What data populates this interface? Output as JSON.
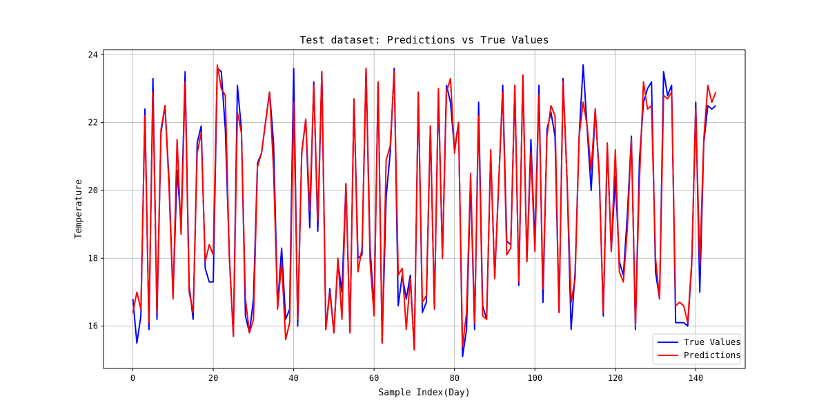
{
  "chart_data": {
    "type": "line",
    "title": "Test dataset: Predictions vs True Values",
    "xlabel": "Sample Index(Day)",
    "ylabel": "Temperature",
    "xlim": [
      -7.3,
      152.3
    ],
    "ylim": [
      14.75,
      24.15
    ],
    "xticks": [
      0,
      20,
      40,
      60,
      80,
      100,
      120,
      140
    ],
    "yticks": [
      16,
      18,
      20,
      22,
      24
    ],
    "grid": true,
    "legend_position": "lower-right",
    "series": [
      {
        "name": "True Values",
        "color": "#0000ff",
        "values": [
          16.8,
          15.5,
          16.3,
          22.4,
          15.9,
          23.3,
          16.2,
          21.7,
          22.5,
          20.3,
          16.9,
          20.6,
          19.0,
          23.5,
          17.2,
          16.2,
          21.4,
          21.9,
          17.7,
          17.3,
          17.3,
          23.6,
          23.5,
          21.8,
          18.1,
          15.7,
          23.1,
          21.8,
          16.3,
          15.8,
          16.8,
          20.8,
          21.1,
          22.0,
          22.9,
          21.4,
          16.6,
          18.3,
          16.2,
          16.5,
          23.6,
          16.0,
          21.1,
          22.1,
          18.9,
          23.2,
          18.8,
          23.5,
          15.9,
          17.1,
          15.8,
          17.9,
          17.0,
          20.2,
          15.8,
          22.7,
          18.0,
          18.1,
          23.6,
          18.3,
          16.5,
          23.2,
          15.5,
          19.8,
          21.1,
          23.6,
          16.6,
          17.5,
          16.8,
          17.5,
          15.3,
          22.9,
          16.4,
          16.7,
          21.9,
          16.5,
          22.9,
          18.0,
          23.1,
          22.6,
          21.2,
          22.0,
          15.1,
          15.9,
          20.3,
          15.9,
          22.6,
          16.6,
          16.2,
          21.1,
          17.4,
          20.2,
          23.1,
          18.5,
          18.4,
          23.1,
          17.2,
          23.4,
          17.9,
          21.5,
          18.4,
          23.1,
          16.7,
          21.8,
          22.3,
          21.6,
          16.4,
          23.3,
          20.3,
          15.9,
          17.6,
          21.6,
          23.7,
          21.8,
          20.0,
          22.4,
          20.5,
          16.3,
          21.3,
          18.2,
          20.4,
          17.9,
          17.5,
          19.3,
          21.6,
          15.9,
          20.9,
          22.6,
          23.0,
          23.2,
          17.6,
          16.8,
          23.5,
          22.8,
          23.1,
          16.1,
          16.1,
          16.1,
          16.0,
          17.8,
          22.6,
          17.0,
          21.4,
          22.5,
          22.4,
          22.5
        ]
      },
      {
        "name": "Predictions",
        "color": "#ff0000",
        "values": [
          16.4,
          17.0,
          16.5,
          22.2,
          16.1,
          22.9,
          16.4,
          21.8,
          22.5,
          20.1,
          16.8,
          21.5,
          18.7,
          23.2,
          17.0,
          16.4,
          21.1,
          21.7,
          17.9,
          18.4,
          18.1,
          23.7,
          23.0,
          22.8,
          18.0,
          15.7,
          22.3,
          21.7,
          16.8,
          15.8,
          16.2,
          20.7,
          21.1,
          22.0,
          22.9,
          20.6,
          16.5,
          17.9,
          15.6,
          16.1,
          22.6,
          16.2,
          21.1,
          22.1,
          19.4,
          23.1,
          19.1,
          23.5,
          15.9,
          17.0,
          15.8,
          18.0,
          16.2,
          20.2,
          15.8,
          22.7,
          17.6,
          18.3,
          23.6,
          17.9,
          16.3,
          23.2,
          15.5,
          20.9,
          21.3,
          23.5,
          17.5,
          17.7,
          15.9,
          17.4,
          15.3,
          22.9,
          16.7,
          16.9,
          21.9,
          16.5,
          23.0,
          18.0,
          22.9,
          23.3,
          21.1,
          22.0,
          15.4,
          16.4,
          20.5,
          16.1,
          22.2,
          16.3,
          16.2,
          21.2,
          17.4,
          20.3,
          22.9,
          18.1,
          18.3,
          23.1,
          17.3,
          23.4,
          17.9,
          21.1,
          18.2,
          22.8,
          17.1,
          21.6,
          22.5,
          22.2,
          16.4,
          23.2,
          20.3,
          16.7,
          17.4,
          21.6,
          22.6,
          21.9,
          20.6,
          22.4,
          20.4,
          16.4,
          21.4,
          18.2,
          21.2,
          17.6,
          17.3,
          18.9,
          21.5,
          16.0,
          20.3,
          23.2,
          22.4,
          22.5,
          18.0,
          16.8,
          22.8,
          22.7,
          22.9,
          16.6,
          16.7,
          16.6,
          16.1,
          17.9,
          22.4,
          17.8,
          21.5,
          23.1,
          22.6,
          22.9
        ]
      }
    ]
  }
}
